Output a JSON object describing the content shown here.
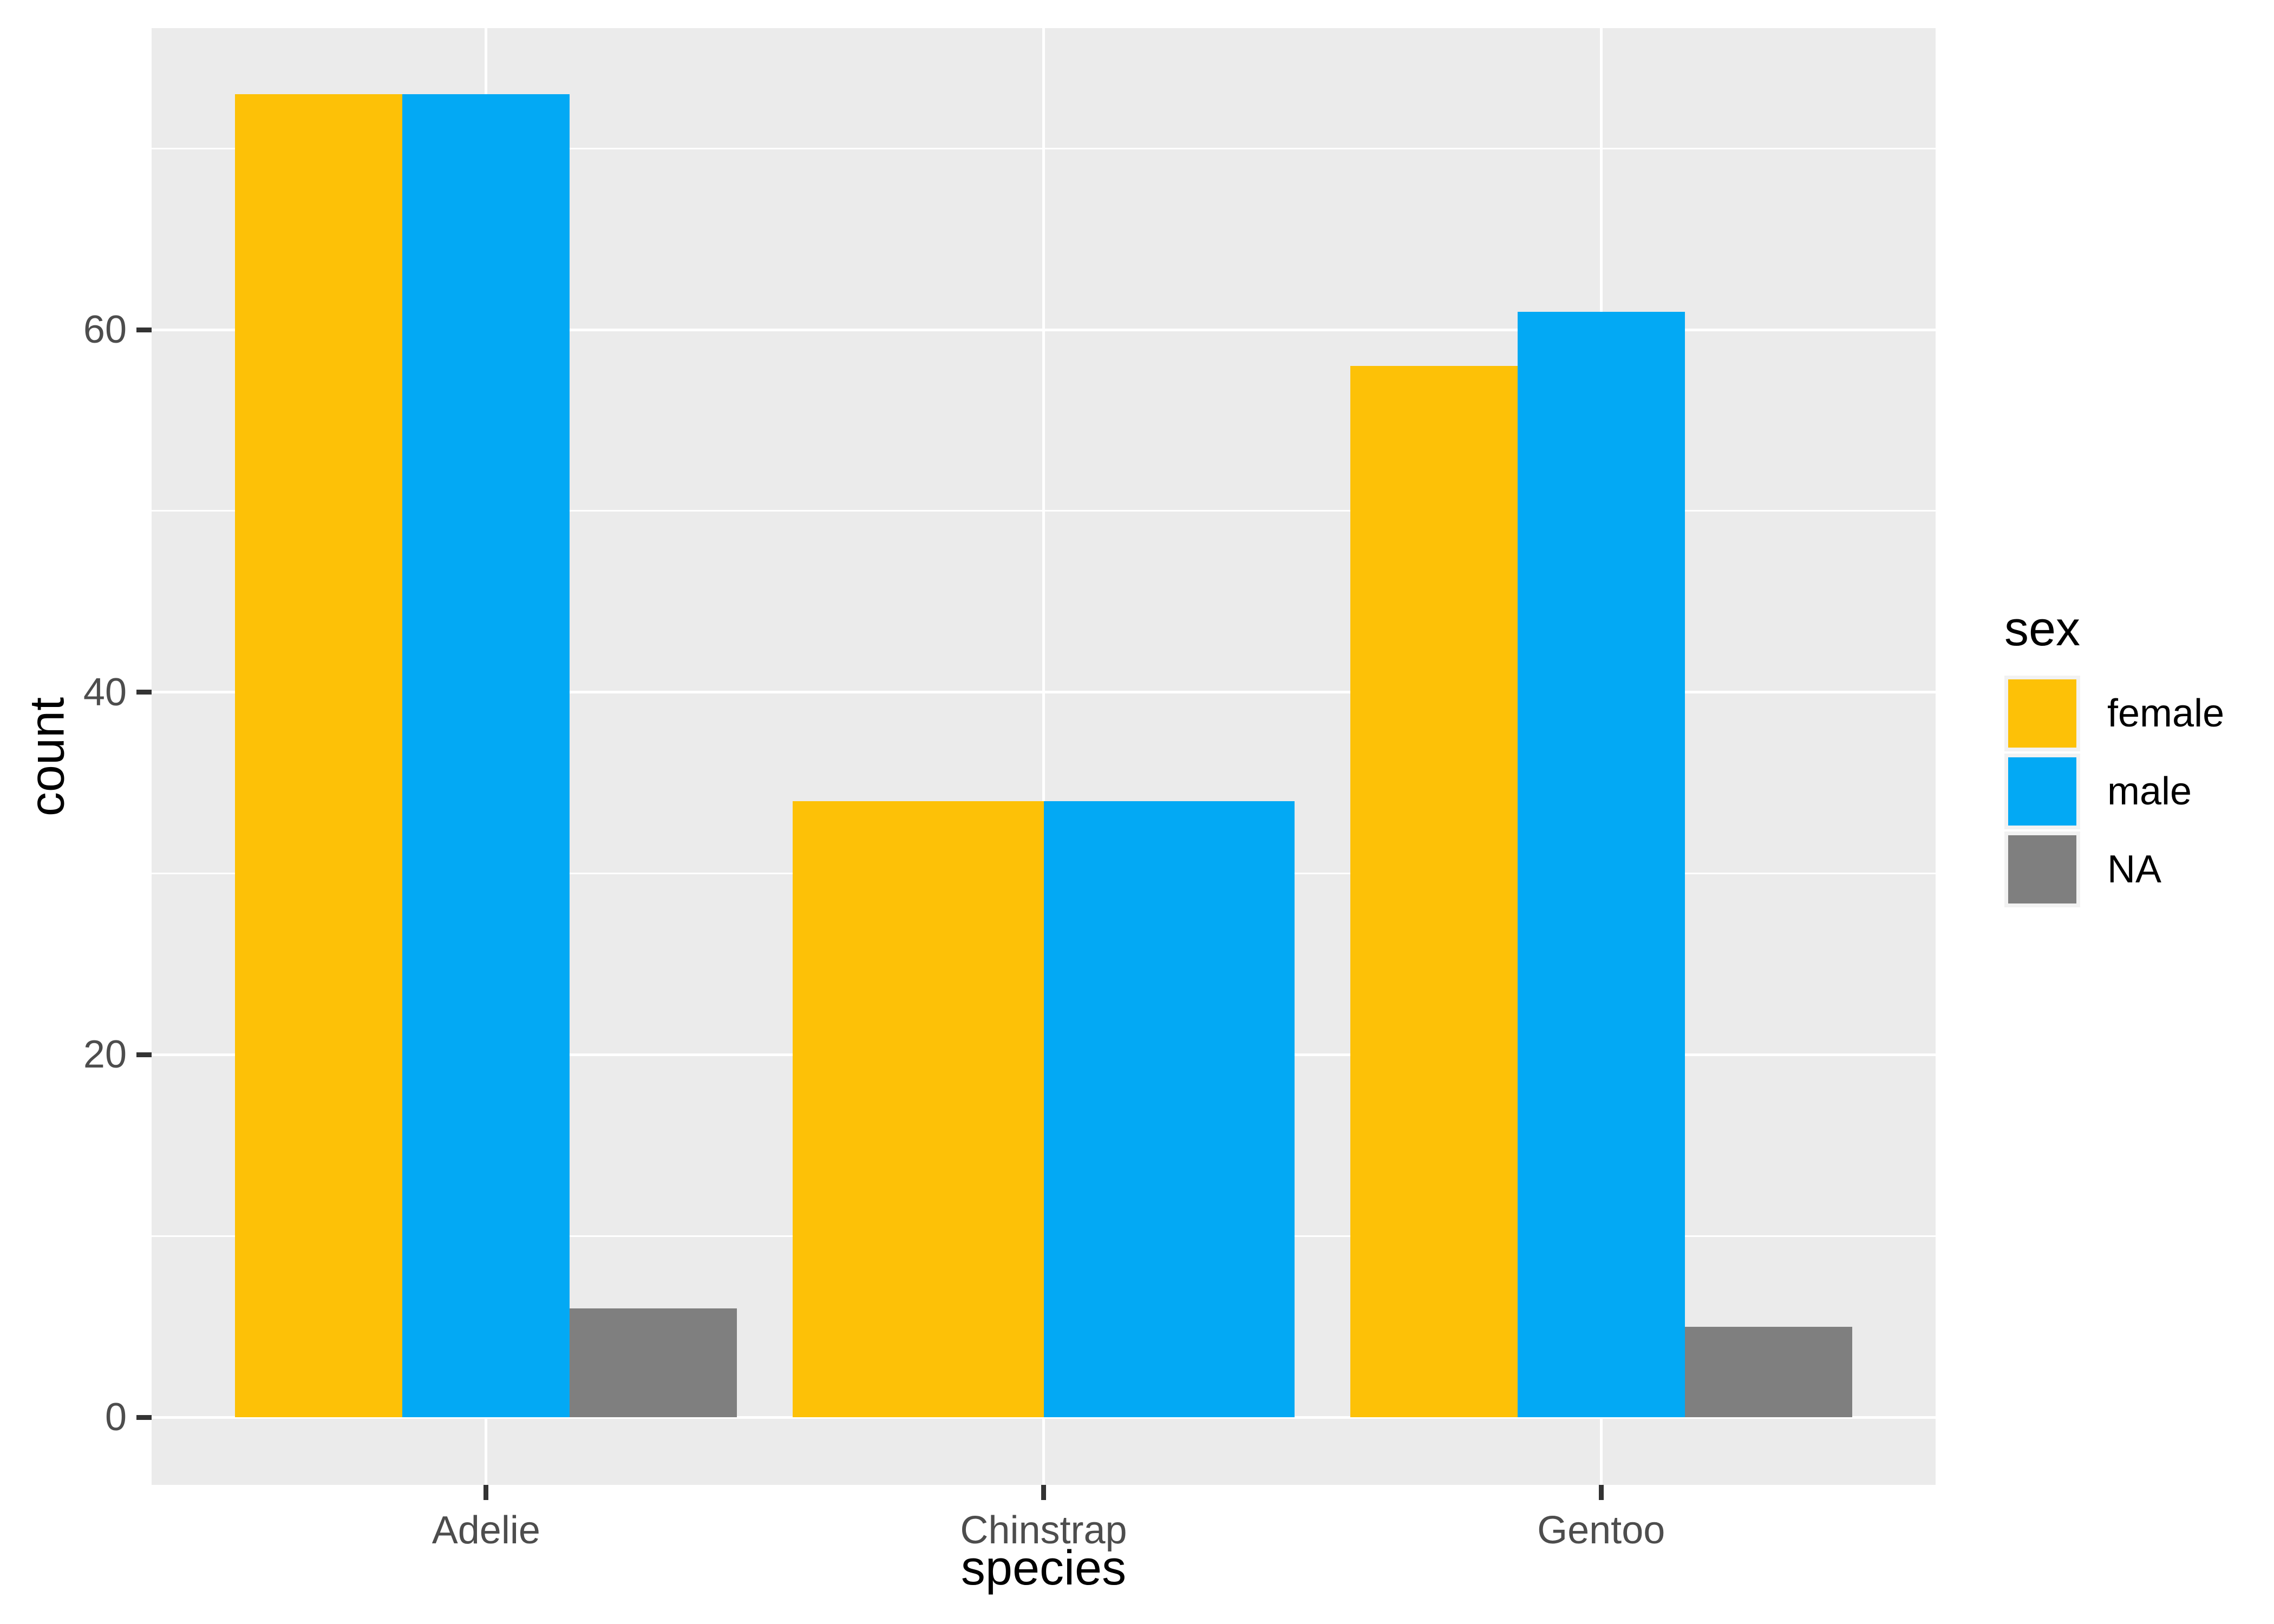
{
  "chart_data": {
    "type": "bar",
    "position": "dodge",
    "title": "",
    "xlabel": "species",
    "ylabel": "count",
    "categories": [
      "Adelie",
      "Chinstrap",
      "Gentoo"
    ],
    "series": [
      {
        "name": "female",
        "color": "#FDC107",
        "values": [
          73,
          34,
          58
        ]
      },
      {
        "name": "male",
        "color": "#03A9F4",
        "values": [
          73,
          34,
          61
        ]
      },
      {
        "name": "NA",
        "color": "#7F7F7F",
        "values": [
          6,
          null,
          5
        ]
      }
    ],
    "legend": {
      "title": "sex",
      "position": "right"
    },
    "y_axis": {
      "ticks": [
        0,
        20,
        40,
        60
      ],
      "minor_ticks": [
        10,
        30,
        50,
        70
      ],
      "range": [
        -3.73,
        76.64
      ]
    },
    "x_axis": {
      "grid": "major-at-categories"
    },
    "bar_group_width_fraction": 0.9,
    "grid_on": true
  },
  "theme": {
    "panel_background": "#EBEBEB",
    "gridline_color": "#FFFFFF",
    "tick_mark_color": "#333333",
    "tick_label_color": "#4D4D4D",
    "axis_title_color": "#000000",
    "legend_key_background": "#F2F2F2",
    "page_background": "#FFFFFF"
  }
}
